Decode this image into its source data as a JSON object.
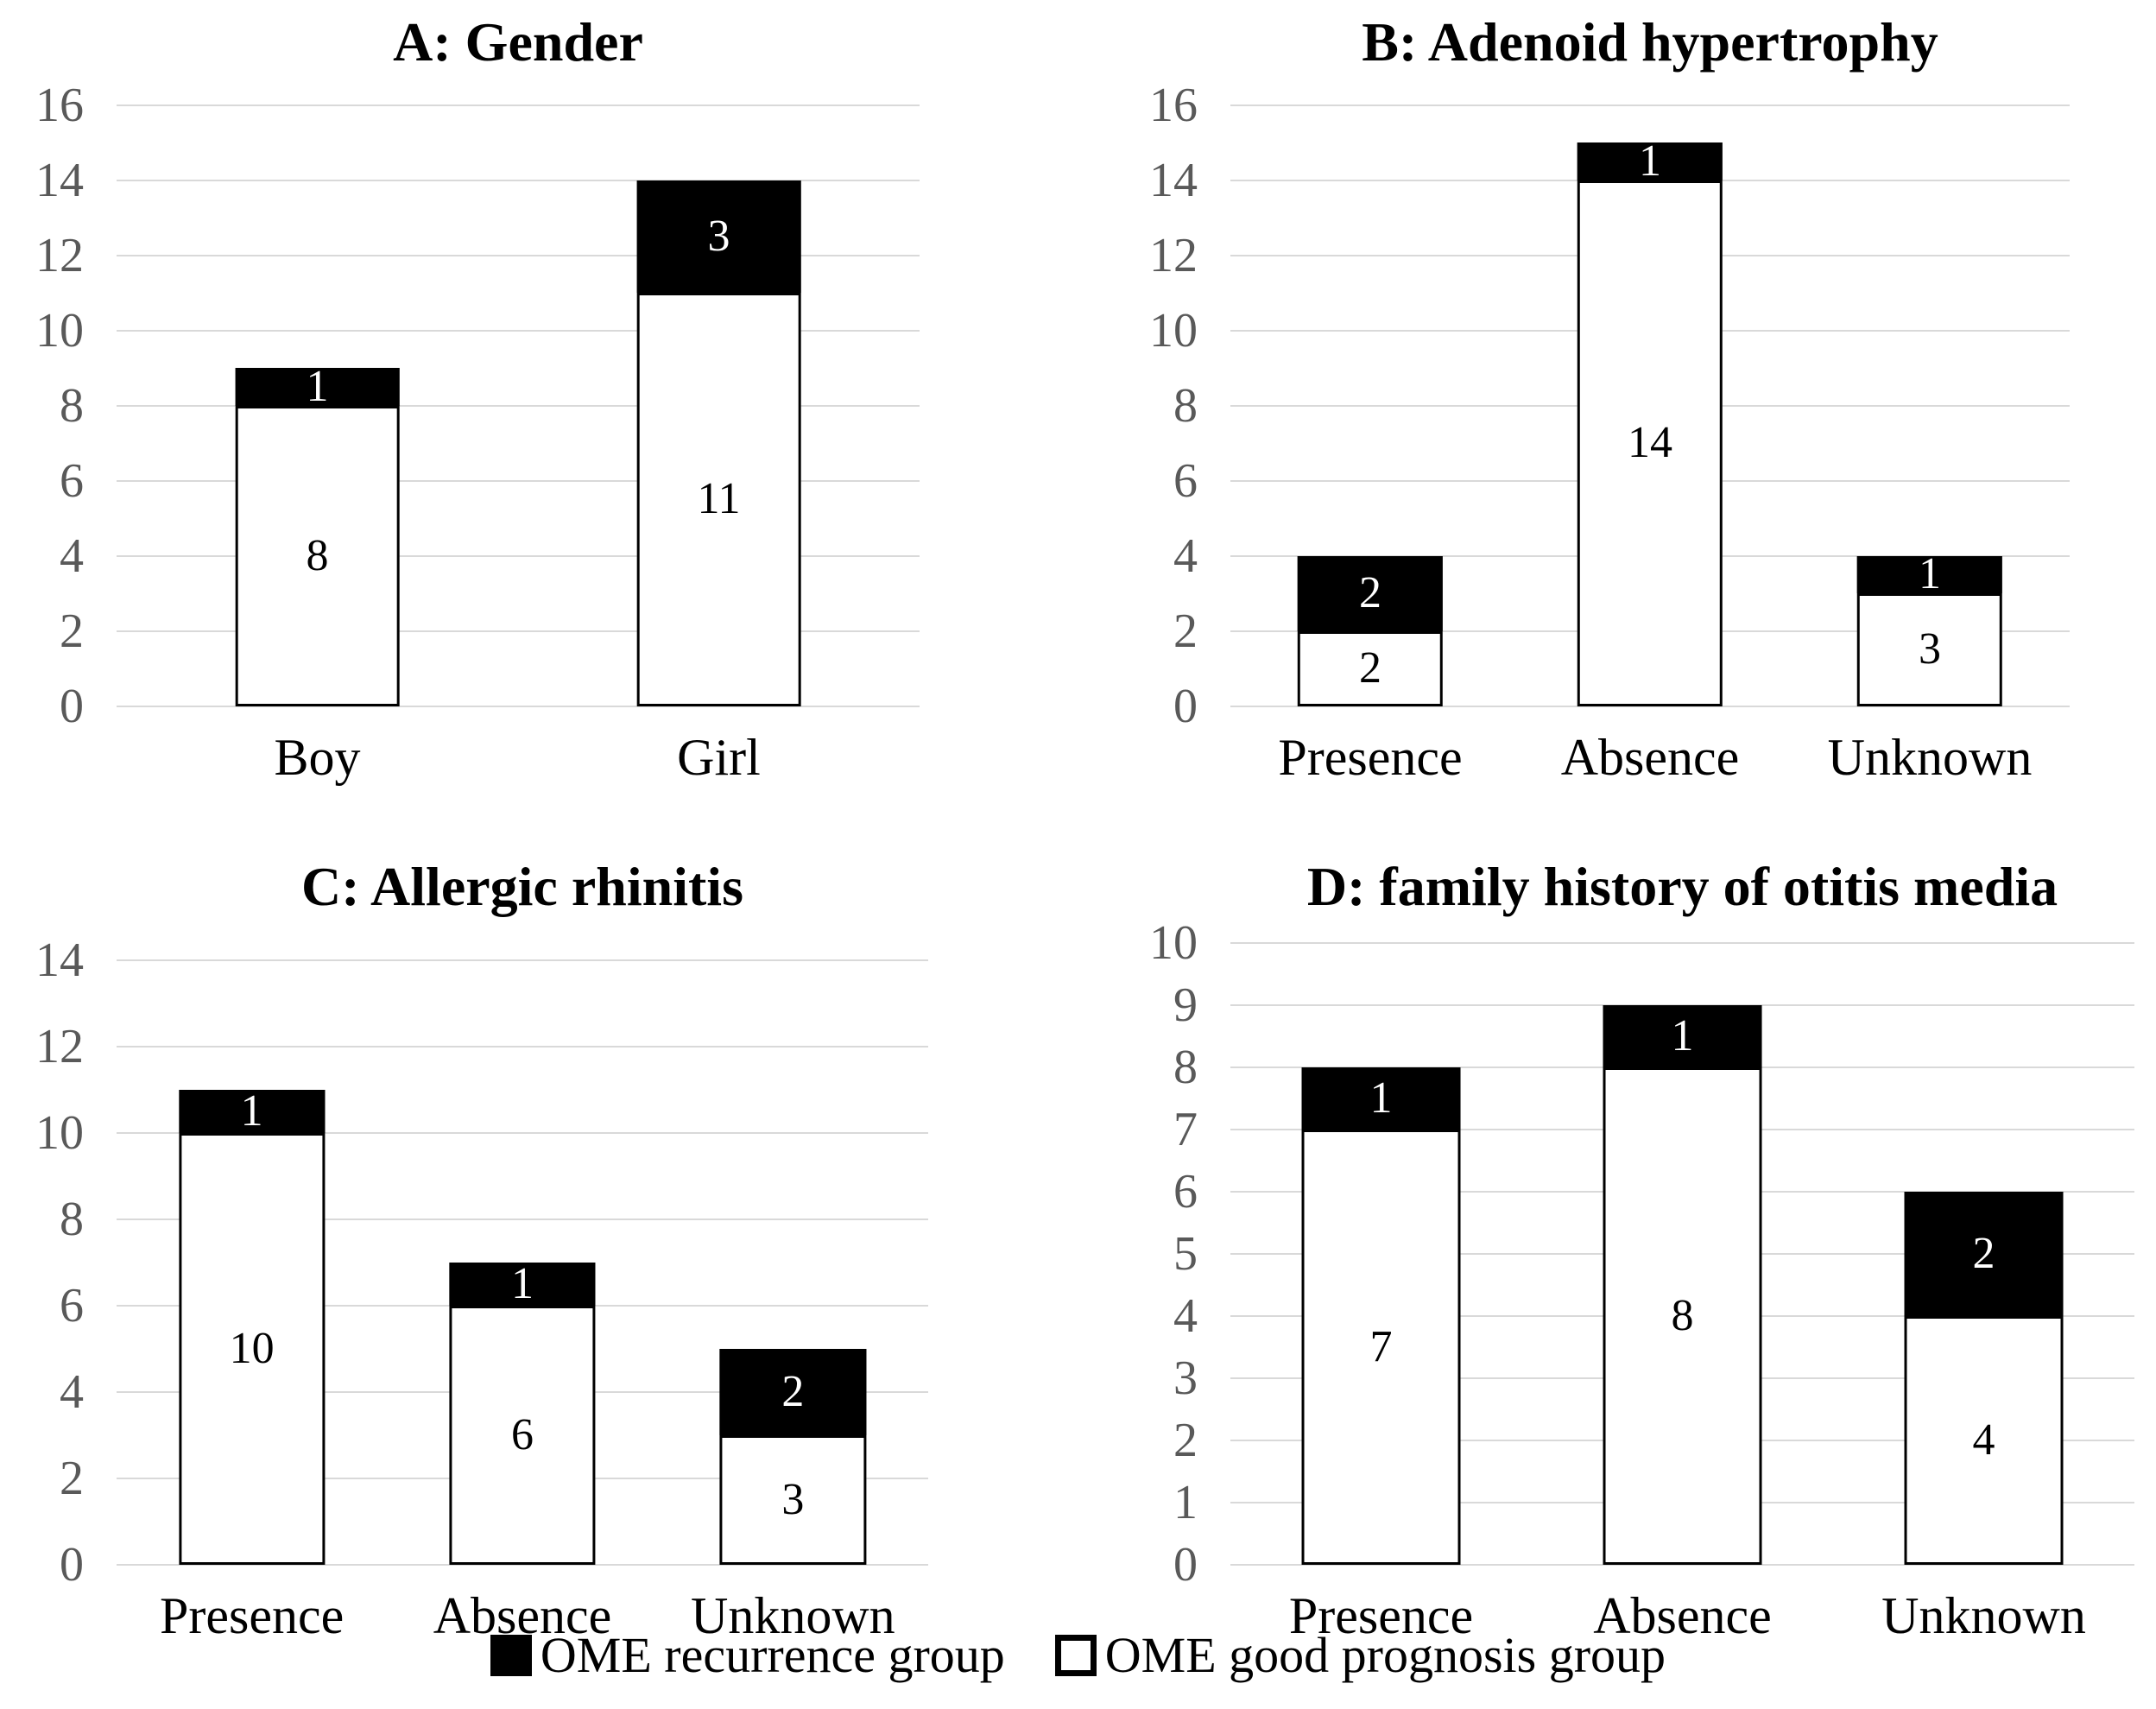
{
  "colors": {
    "recurrence_fill": "#000000",
    "good_fill": "#ffffff",
    "bar_border": "#000000",
    "gridline": "#d9d9d9",
    "tick_text": "#595959",
    "label_on_white": "#000000",
    "label_on_black": "#ffffff",
    "background": "#ffffff"
  },
  "legend": {
    "items": [
      {
        "label": "OME recurrence group",
        "swatch": "recurrence"
      },
      {
        "label": "OME good prognosis group",
        "swatch": "good"
      }
    ]
  },
  "chart_data": [
    {
      "id": "gender",
      "type": "bar",
      "stacked": true,
      "title": "A: Gender",
      "categories": [
        "Boy",
        "Girl"
      ],
      "series": [
        {
          "name": "OME good prognosis group",
          "values": [
            8,
            11
          ]
        },
        {
          "name": "OME recurrence group",
          "values": [
            1,
            3
          ]
        }
      ],
      "totals": [
        9,
        14
      ],
      "xlabel": "",
      "ylabel": "",
      "ylim": [
        0,
        16
      ],
      "ytick_step": 2,
      "grid": true,
      "legend_position": "shared-bottom"
    },
    {
      "id": "adenoid-hypertrophy",
      "type": "bar",
      "stacked": true,
      "title": "B: Adenoid hypertrophy",
      "categories": [
        "Presence",
        "Absence",
        "Unknown"
      ],
      "series": [
        {
          "name": "OME good prognosis group",
          "values": [
            2,
            14,
            3
          ]
        },
        {
          "name": "OME recurrence group",
          "values": [
            2,
            1,
            1
          ]
        }
      ],
      "totals": [
        4,
        15,
        4
      ],
      "xlabel": "",
      "ylabel": "",
      "ylim": [
        0,
        16
      ],
      "ytick_step": 2,
      "grid": true,
      "legend_position": "shared-bottom"
    },
    {
      "id": "allergic-rhinitis",
      "type": "bar",
      "stacked": true,
      "title": "C: Allergic rhinitis",
      "categories": [
        "Presence",
        "Absence",
        "Unknown"
      ],
      "series": [
        {
          "name": "OME good prognosis group",
          "values": [
            10,
            6,
            3
          ]
        },
        {
          "name": "OME recurrence group",
          "values": [
            1,
            1,
            2
          ]
        }
      ],
      "totals": [
        11,
        7,
        5
      ],
      "xlabel": "",
      "ylabel": "",
      "ylim": [
        0,
        14
      ],
      "ytick_step": 2,
      "grid": true,
      "legend_position": "shared-bottom"
    },
    {
      "id": "family-history-otitis-media",
      "type": "bar",
      "stacked": true,
      "title": "D: family history of otitis media",
      "categories": [
        "Presence",
        "Absence",
        "Unknown"
      ],
      "series": [
        {
          "name": "OME good prognosis group",
          "values": [
            7,
            8,
            4
          ]
        },
        {
          "name": "OME recurrence group",
          "values": [
            1,
            1,
            2
          ]
        }
      ],
      "totals": [
        8,
        9,
        6
      ],
      "xlabel": "",
      "ylabel": "",
      "ylim": [
        0,
        10
      ],
      "ytick_step": 1,
      "grid": true,
      "legend_position": "shared-bottom"
    }
  ]
}
